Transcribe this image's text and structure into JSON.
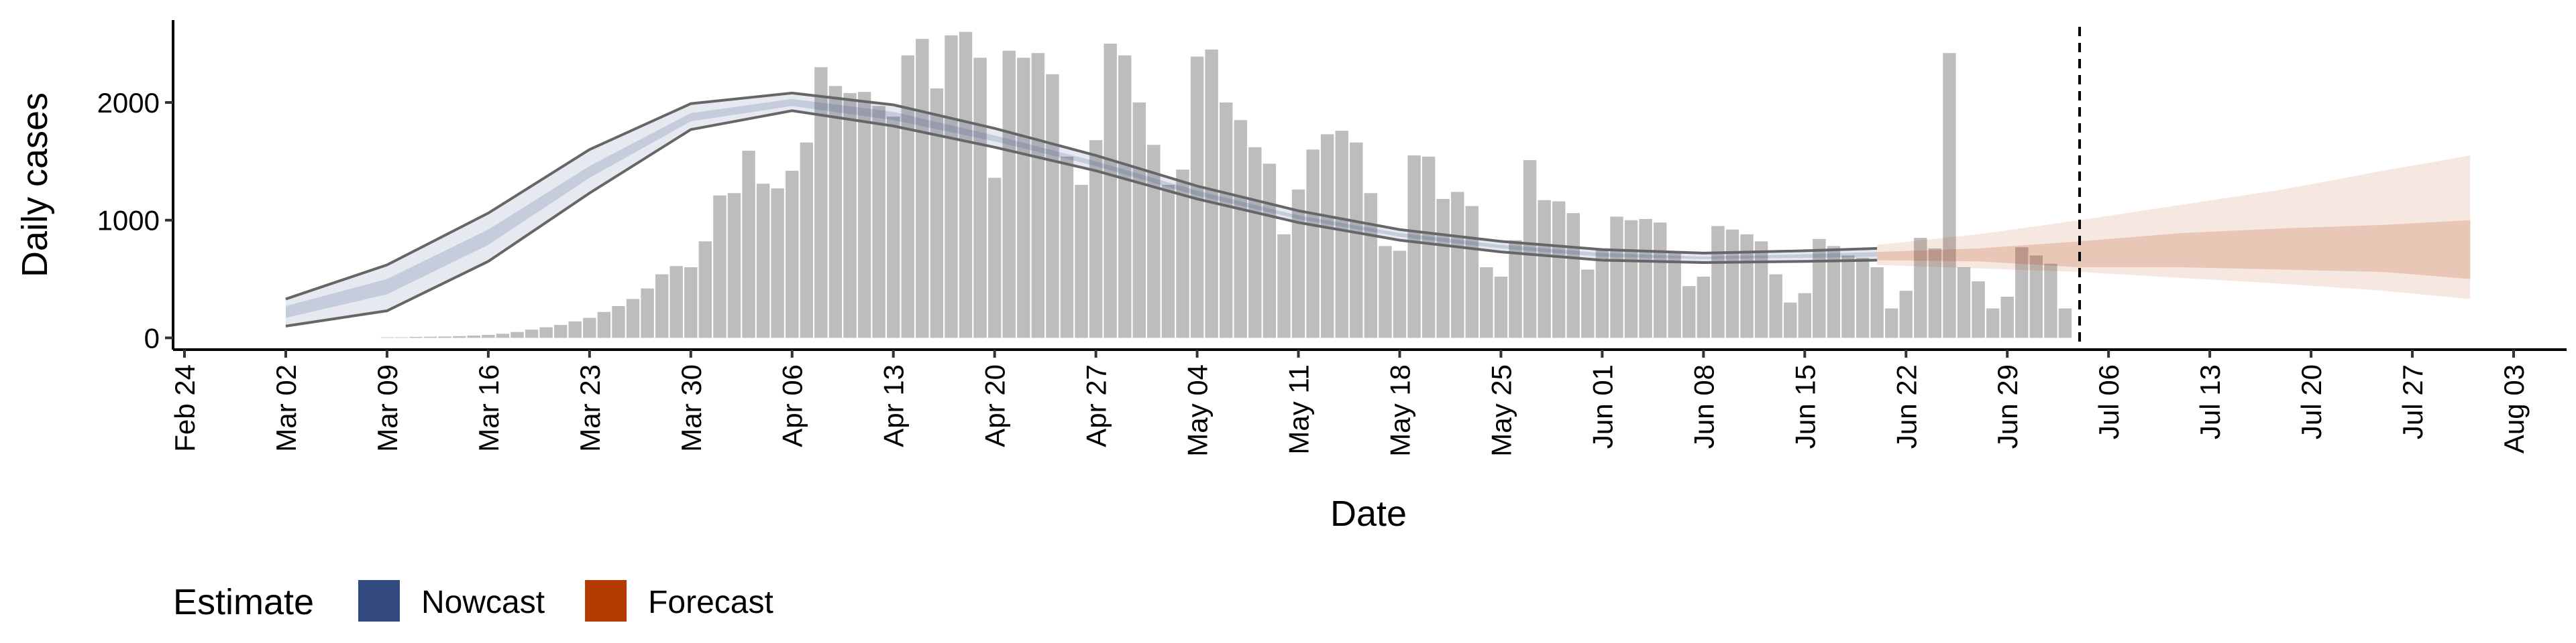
{
  "chart_data": {
    "type": "bar",
    "x_label": "Date",
    "y_label": "Daily cases",
    "xlim": [
      "Feb 24",
      "Aug 03"
    ],
    "ylim": [
      -100,
      2700
    ],
    "xticks": [
      "Feb 24",
      "Mar 02",
      "Mar 09",
      "Mar 16",
      "Mar 23",
      "Mar 30",
      "Apr 06",
      "Apr 13",
      "Apr 20",
      "Apr 27",
      "May 04",
      "May 11",
      "May 18",
      "May 25",
      "Jun 01",
      "Jun 08",
      "Jun 15",
      "Jun 22",
      "Jun 29",
      "Jul 06",
      "Jul 13",
      "Jul 20",
      "Jul 27",
      "Aug 03"
    ],
    "yticks": [
      0,
      1000,
      2000
    ],
    "bar_start": "Mar 09",
    "bar_color": "#bdbdbd",
    "values": [
      5,
      5,
      8,
      10,
      12,
      15,
      20,
      25,
      35,
      50,
      70,
      90,
      110,
      140,
      170,
      220,
      270,
      330,
      420,
      540,
      610,
      600,
      820,
      1210,
      1230,
      1590,
      1310,
      1270,
      1420,
      1660,
      2300,
      2140,
      2080,
      2090,
      1970,
      1880,
      2400,
      2540,
      2120,
      2570,
      2600,
      2380,
      1360,
      2440,
      2380,
      2420,
      2240,
      1540,
      1300,
      1680,
      2500,
      2400,
      2000,
      1640,
      1300,
      1430,
      2390,
      2450,
      2000,
      1850,
      1620,
      1480,
      880,
      1260,
      1600,
      1730,
      1760,
      1660,
      1230,
      780,
      740,
      1550,
      1540,
      1180,
      1240,
      1120,
      600,
      520,
      830,
      1510,
      1170,
      1160,
      1060,
      580,
      760,
      1030,
      1000,
      1010,
      980,
      730,
      440,
      520,
      950,
      920,
      880,
      820,
      540,
      300,
      380,
      840,
      780,
      700,
      680,
      600,
      250,
      400,
      850,
      760,
      2420,
      600,
      480,
      250,
      350,
      770,
      700,
      630,
      250
    ],
    "vline": "Jul 04",
    "legend_title": "Estimate",
    "bands": [
      {
        "name": "Nowcast",
        "color": "#334a80",
        "outline": "#666666",
        "x": [
          "Mar 02",
          "Mar 09",
          "Mar 16",
          "Mar 23",
          "Mar 30",
          "Apr 06",
          "Apr 13",
          "Apr 20",
          "Apr 27",
          "May 04",
          "May 11",
          "May 18",
          "May 25",
          "Jun 01",
          "Jun 08",
          "Jun 15",
          "Jun 20"
        ],
        "upper90": [
          330,
          620,
          1060,
          1600,
          1990,
          2080,
          1980,
          1780,
          1550,
          1290,
          1080,
          920,
          820,
          750,
          720,
          740,
          760
        ],
        "lower90": [
          100,
          230,
          650,
          1230,
          1770,
          1930,
          1800,
          1620,
          1420,
          1180,
          980,
          830,
          730,
          660,
          640,
          650,
          660
        ],
        "upper50": [
          270,
          500,
          920,
          1460,
          1910,
          2030,
          1920,
          1720,
          1500,
          1250,
          1040,
          890,
          790,
          720,
          690,
          710,
          730
        ],
        "lower50": [
          170,
          370,
          790,
          1360,
          1840,
          1970,
          1850,
          1670,
          1460,
          1210,
          1010,
          860,
          760,
          690,
          670,
          680,
          690
        ]
      },
      {
        "name": "Forecast",
        "color": "#b33a00",
        "x": [
          "Jun 20",
          "Jun 27",
          "Jul 04",
          "Jul 11",
          "Jul 18",
          "Jul 25",
          "Jul 31"
        ],
        "upper90": [
          790,
          880,
          1000,
          1130,
          1260,
          1420,
          1550
        ],
        "lower90": [
          620,
          590,
          560,
          510,
          460,
          400,
          330
        ],
        "upper50": [
          730,
          760,
          820,
          890,
          930,
          960,
          1000
        ],
        "lower50": [
          660,
          650,
          600,
          600,
          580,
          560,
          500
        ]
      }
    ]
  }
}
